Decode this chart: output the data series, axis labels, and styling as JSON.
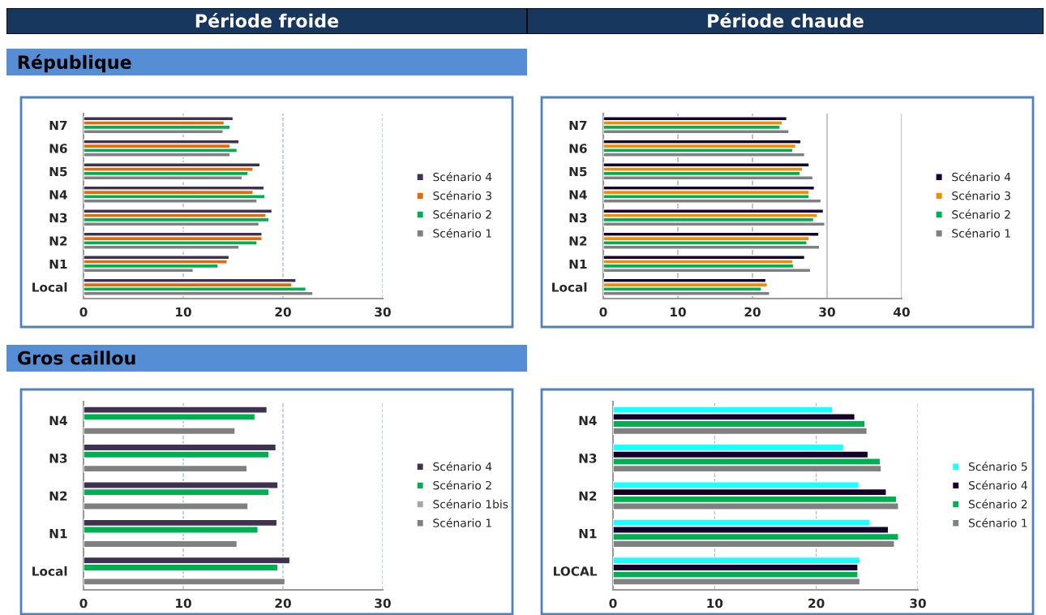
{
  "chart_data": [
    {
      "type": "other",
      "title": "Période froide"
    },
    {
      "type": "other",
      "title": "Période chaude"
    },
    {
      "type": "other",
      "title": "République"
    },
    {
      "type": "bar",
      "orientation": "horizontal",
      "categories": [
        "N7",
        "N6",
        "N5",
        "N4",
        "N3",
        "N2",
        "N1",
        "Local"
      ],
      "xlim": [
        0,
        30
      ],
      "xticks": [
        0,
        10,
        20,
        30
      ],
      "grid": "x",
      "legend": "right",
      "series": [
        {
          "name": "Scénario 4",
          "color": "#403151",
          "values": [
            15.0,
            15.6,
            17.7,
            18.1,
            18.9,
            17.9,
            14.6,
            21.3
          ]
        },
        {
          "name": "Scénario 3",
          "color": "#e36c09",
          "values": [
            14.1,
            14.7,
            17.0,
            17.0,
            18.3,
            17.9,
            14.4,
            20.9
          ]
        },
        {
          "name": "Scénario 2",
          "color": "#00b050",
          "values": [
            14.7,
            15.4,
            16.5,
            18.2,
            18.6,
            17.4,
            13.5,
            22.3
          ]
        },
        {
          "name": "Scénario 1",
          "color": "#808080",
          "values": [
            14.0,
            14.7,
            15.9,
            17.4,
            17.6,
            15.6,
            11.0,
            23.0
          ]
        }
      ]
    },
    {
      "type": "bar",
      "orientation": "horizontal",
      "categories": [
        "N7",
        "N6",
        "N5",
        "N4",
        "N3",
        "N2",
        "N1",
        "Local"
      ],
      "xlim": [
        0,
        40
      ],
      "xticks": [
        0,
        10,
        20,
        30,
        40
      ],
      "grid": "x",
      "legend": "right",
      "series": [
        {
          "name": "Scénario 4",
          "color": "#14002a",
          "values": [
            24.6,
            26.5,
            27.6,
            28.3,
            29.5,
            28.9,
            27.0,
            21.8
          ]
        },
        {
          "name": "Scénario 3",
          "color": "#f28c00",
          "values": [
            24.0,
            25.8,
            26.7,
            27.6,
            28.7,
            27.6,
            25.4,
            22.0
          ]
        },
        {
          "name": "Scénario 2",
          "color": "#00b050",
          "values": [
            23.7,
            25.4,
            26.4,
            27.6,
            28.2,
            27.3,
            25.5,
            21.2
          ]
        },
        {
          "name": "Scénario 1",
          "color": "#808080",
          "values": [
            24.9,
            27.0,
            28.1,
            29.2,
            29.7,
            29.0,
            27.8,
            22.3
          ]
        }
      ]
    },
    {
      "type": "other",
      "title": "Gros caillou"
    },
    {
      "type": "bar",
      "orientation": "horizontal",
      "categories": [
        "N4",
        "N3",
        "N2",
        "N1",
        "Local"
      ],
      "xlim": [
        0,
        30
      ],
      "xticks": [
        0,
        10,
        20,
        30
      ],
      "grid": "x",
      "legend": "right",
      "series": [
        {
          "name": "Scénario 4",
          "color": "#403151",
          "values": [
            18.4,
            19.3,
            19.5,
            19.4,
            20.7
          ]
        },
        {
          "name": "Scénario 2",
          "color": "#00b050",
          "values": [
            17.2,
            18.6,
            18.6,
            17.5,
            19.5
          ]
        },
        {
          "name": "Scénario 1bis",
          "color": "#a6a6a6",
          "values": [
            null,
            null,
            null,
            null,
            null
          ]
        },
        {
          "name": "Scénario 1",
          "color": "#808080",
          "values": [
            15.2,
            16.4,
            16.5,
            15.4,
            20.2
          ]
        }
      ]
    },
    {
      "type": "bar",
      "orientation": "horizontal",
      "categories": [
        "N4",
        "N3",
        "N2",
        "N1",
        "LOCAL"
      ],
      "xlim": [
        0,
        30
      ],
      "xticks": [
        0,
        10,
        20,
        30
      ],
      "grid": "x",
      "legend": "right",
      "series": [
        {
          "name": "Scénario 5",
          "color": "#1affff",
          "values": [
            21.6,
            22.7,
            24.2,
            25.3,
            24.3
          ]
        },
        {
          "name": "Scénario 4",
          "color": "#14002a",
          "values": [
            23.8,
            25.1,
            26.9,
            27.1,
            24.1
          ]
        },
        {
          "name": "Scénario 2",
          "color": "#00b050",
          "values": [
            24.8,
            26.3,
            27.9,
            28.1,
            24.1
          ]
        },
        {
          "name": "Scénario 1",
          "color": "#808080",
          "values": [
            25.0,
            26.4,
            28.1,
            27.7,
            24.3
          ]
        }
      ]
    }
  ]
}
